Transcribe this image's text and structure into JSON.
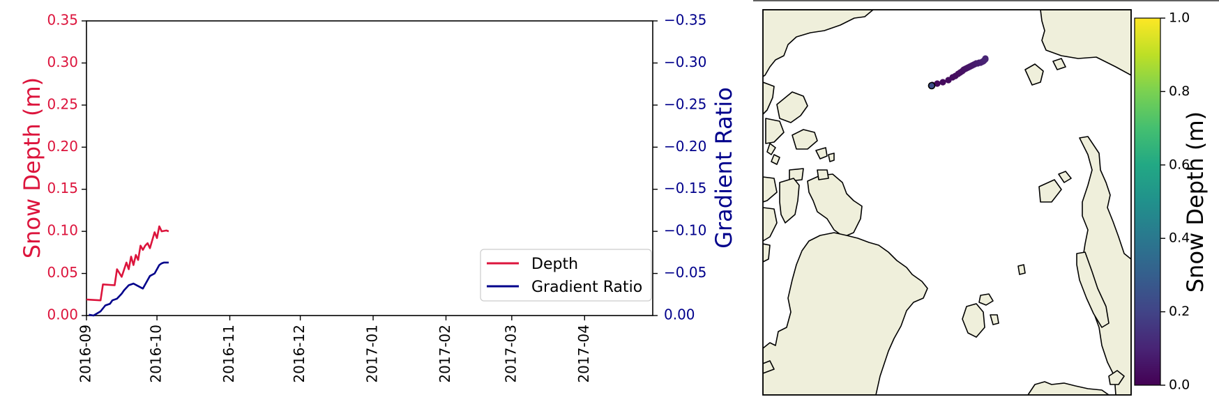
{
  "chart_data": [
    {
      "type": "line",
      "title": "",
      "xlabel": "",
      "ylabel": "Snow Depth (m)",
      "ylabel_right": "Gradient Ratio",
      "xlim": [
        "2016-09-01",
        "2017-04-30"
      ],
      "ylim": [
        0,
        0.35
      ],
      "ylim_right": [
        0,
        -0.35
      ],
      "x_ticks": [
        "2016-09",
        "2016-10",
        "2016-11",
        "2016-12",
        "2017-01",
        "2017-02",
        "2017-03",
        "2017-04"
      ],
      "y_ticks": [
        "0.00",
        "0.05",
        "0.10",
        "0.15",
        "0.20",
        "0.25",
        "0.30",
        "0.35"
      ],
      "y_ticks_right": [
        "0.00",
        "−0.05",
        "−0.10",
        "−0.15",
        "−0.20",
        "−0.25",
        "−0.30",
        "−0.35"
      ],
      "grid": false,
      "legend": "lower-right",
      "colors": {
        "left_axis": "#dc143c",
        "right_axis": "#00008b"
      },
      "series": [
        {
          "name": "Depth",
          "axis": "left",
          "color": "#dc143c",
          "x": [
            "2016-09-01",
            "2016-09-07",
            "2016-09-08",
            "2016-09-13",
            "2016-09-14",
            "2016-09-16",
            "2016-09-18",
            "2016-09-19",
            "2016-09-20",
            "2016-09-21",
            "2016-09-22",
            "2016-09-23",
            "2016-09-24",
            "2016-09-25",
            "2016-09-26",
            "2016-09-27",
            "2016-09-28",
            "2016-09-30",
            "2016-10-01",
            "2016-10-02",
            "2016-10-03",
            "2016-10-05",
            "2016-10-06"
          ],
          "y": [
            0.019,
            0.018,
            0.037,
            0.036,
            0.055,
            0.046,
            0.063,
            0.055,
            0.07,
            0.06,
            0.072,
            0.066,
            0.083,
            0.078,
            0.083,
            0.086,
            0.08,
            0.099,
            0.092,
            0.106,
            0.1,
            0.101,
            0.1
          ]
        },
        {
          "name": "Gradient Ratio",
          "axis": "right",
          "color": "#00008b",
          "x": [
            "2016-09-02",
            "2016-09-04",
            "2016-09-07",
            "2016-09-09",
            "2016-09-11",
            "2016-09-12",
            "2016-09-14",
            "2016-09-16",
            "2016-09-17",
            "2016-09-19",
            "2016-09-21",
            "2016-09-23",
            "2016-09-25",
            "2016-09-27",
            "2016-09-28",
            "2016-09-30",
            "2016-10-01",
            "2016-10-02",
            "2016-10-03",
            "2016-10-04",
            "2016-10-06"
          ],
          "y": [
            -0.001,
            0.0,
            -0.005,
            -0.012,
            -0.014,
            -0.018,
            -0.02,
            -0.026,
            -0.03,
            -0.036,
            -0.038,
            -0.035,
            -0.032,
            -0.042,
            -0.047,
            -0.05,
            -0.055,
            -0.06,
            -0.062,
            -0.063,
            -0.063
          ]
        }
      ]
    },
    {
      "type": "scatter",
      "title": "",
      "colorbar_label": "Snow Depth (m)",
      "colorbar_range": [
        0,
        1.0
      ],
      "colorbar_ticks": [
        "0.0",
        "0.2",
        "0.4",
        "0.6",
        "0.8",
        "1.0"
      ],
      "colormap": "viridis",
      "colors": {
        "land": "#efefdb",
        "ocean": "#ffffff",
        "coast": "#000000"
      },
      "track_values": [
        0.02,
        0.04,
        0.06,
        0.08,
        0.1
      ]
    }
  ]
}
